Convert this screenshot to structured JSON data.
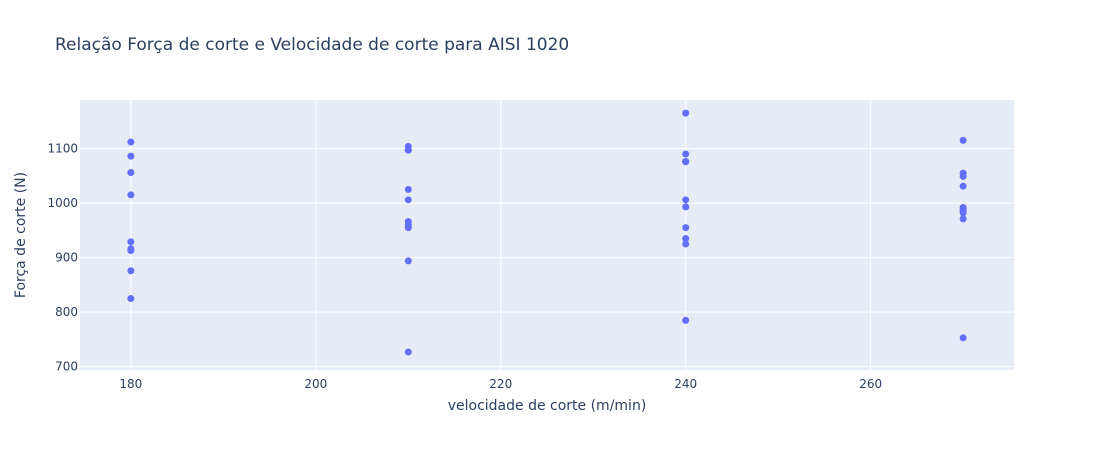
{
  "chart_data": {
    "type": "scatter",
    "title": "Relação Força de corte e Velocidade de corte para AISI 1020",
    "xlabel": "velocidade de corte (m/min)",
    "ylabel": "Força de corte (N)",
    "xlim": [
      174.5,
      275.5
    ],
    "ylim": [
      694,
      1189
    ],
    "x_ticks": [
      180,
      200,
      220,
      240,
      260
    ],
    "y_ticks": [
      700,
      800,
      900,
      1000,
      1100
    ],
    "grid": true,
    "colors": {
      "background": "#e5ecf6",
      "grid": "#ffffff",
      "marker": "#636efa",
      "text": "#2a3f5f"
    },
    "series": [
      {
        "x": [
          180,
          180,
          180,
          180,
          180,
          180,
          180,
          180,
          180,
          210,
          210,
          210,
          210,
          210,
          210,
          210,
          210,
          210,
          210,
          240,
          240,
          240,
          240,
          240,
          240,
          240,
          240,
          240,
          240,
          270,
          270,
          270,
          270,
          270,
          270,
          270,
          270,
          270,
          270
        ],
        "y": [
          1112,
          1086,
          1056,
          1015,
          929,
          916,
          913,
          876,
          825,
          1104,
          1097,
          1025,
          1006,
          966,
          960,
          955,
          894,
          727,
          1097,
          1165,
          1090,
          1076,
          1006,
          993,
          955,
          935,
          925,
          785,
          1076,
          1115,
          1055,
          1049,
          1031,
          992,
          989,
          985,
          982,
          971,
          753
        ]
      }
    ]
  }
}
